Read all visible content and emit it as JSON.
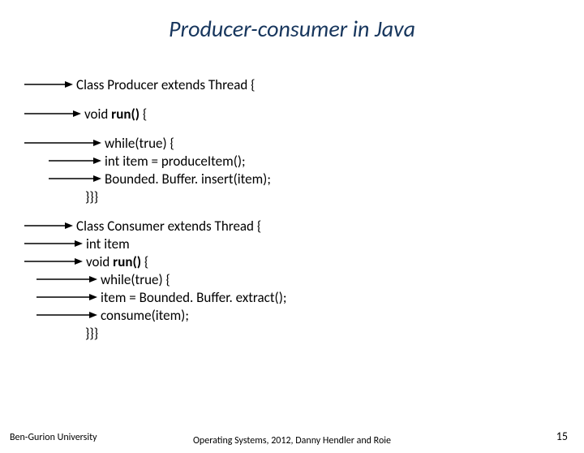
{
  "title": "Producer-consumer in Java",
  "lines": [
    {
      "indent": 0,
      "arrow_len": 60,
      "text": "Class Producer extends Thread {"
    },
    {
      "gap": true
    },
    {
      "indent": 0,
      "arrow_len": 70,
      "text": "void ",
      "bold_after": "run()",
      "after": " {"
    },
    {
      "gap": true
    },
    {
      "indent": 0,
      "arrow_len": 95,
      "text": "while(true) {"
    },
    {
      "indent": 30,
      "arrow_len": 65,
      "text": "int item = produceItem();"
    },
    {
      "indent": 30,
      "arrow_len": 65,
      "text": "Bounded. Buffer. insert(item);"
    },
    {
      "indent": 75,
      "plain": "}}}"
    },
    {
      "gap": true
    },
    {
      "indent": 0,
      "arrow_len": 60,
      "text": "Class Consumer extends Thread {"
    },
    {
      "indent": 0,
      "arrow_len": 72,
      "text": "int item"
    },
    {
      "indent": 0,
      "arrow_len": 72,
      "text": "void ",
      "bold_after": "run()",
      "after": " {"
    },
    {
      "indent": 15,
      "arrow_len": 75,
      "text": "while(true) {"
    },
    {
      "indent": 15,
      "arrow_len": 75,
      "text": "item = Bounded. Buffer. extract();"
    },
    {
      "indent": 15,
      "arrow_len": 75,
      "text": "consume(item);"
    },
    {
      "indent": 75,
      "plain": "}}}"
    }
  ],
  "arrow_color": "#000000",
  "arrow_stroke": 1.5,
  "footer": {
    "left": "Ben-Gurion University",
    "center": "Operating Systems, 2012, Danny Hendler and Roie",
    "page": "15"
  }
}
